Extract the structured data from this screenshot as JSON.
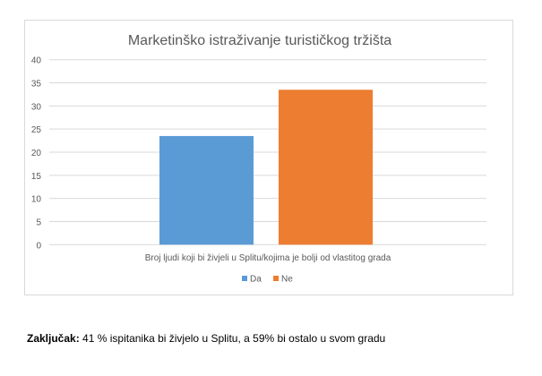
{
  "chart_data": {
    "type": "bar",
    "title": "Marketinško istraživanje turističkog tržišta",
    "categories": [
      "Broj ljudi koji bi živjeli u Splitu/kojima je bolji od vlastitog grada"
    ],
    "series": [
      {
        "name": "Da",
        "values": [
          23.5
        ],
        "color": "#5b9bd5"
      },
      {
        "name": "Ne",
        "values": [
          33.5
        ],
        "color": "#ed7d31"
      }
    ],
    "xlabel": "",
    "ylabel": "",
    "ylim": [
      0,
      40
    ],
    "yticks": [
      0,
      5,
      10,
      15,
      20,
      25,
      30,
      35,
      40
    ],
    "grid": true,
    "legend": "bottom"
  },
  "conclusion": {
    "label": "Zaključak:",
    "text": " 41 % ispitanika bi živjelo u Splitu, a 59% bi ostalo u svom gradu"
  }
}
